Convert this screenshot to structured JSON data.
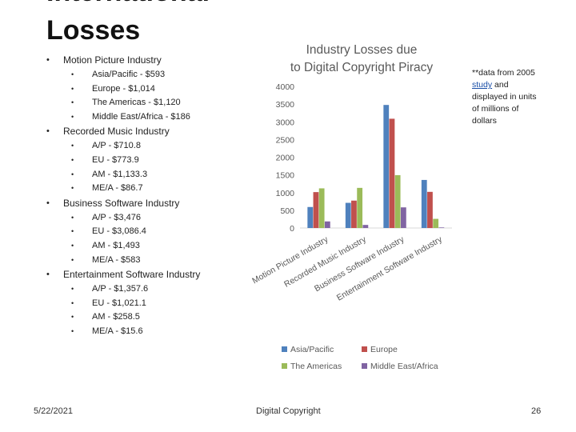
{
  "slide": {
    "title": "International\nLosses",
    "footer_date": "5/22/2021",
    "footer_center": "Digital Copyright",
    "page_number": "26"
  },
  "bullets": [
    {
      "label": "Motion Picture Industry",
      "items": [
        "Asia/Pacific - $593",
        "Europe - $1,014",
        "The Americas - $1,120",
        "Middle East/Africa - $186"
      ]
    },
    {
      "label": "Recorded Music Industry",
      "items": [
        "A/P - $710.8",
        "EU - $773.9",
        "AM - $1,133.3",
        "ME/A - $86.7"
      ]
    },
    {
      "label": "Business Software Industry",
      "items": [
        "A/P - $3,476",
        "EU - $3,086.4",
        "AM - $1,493",
        "ME/A - $583"
      ]
    },
    {
      "label": "Entertainment Software Industry",
      "items": [
        "A/P - $1,357.6",
        "EU - $1,021.1",
        "AM - $258.5",
        "ME/A - $15.6"
      ]
    }
  ],
  "note": {
    "prefix": "**data from 2005 ",
    "link_text": "study",
    "suffix": " and displayed in units of millions of dollars"
  },
  "chart_data": {
    "type": "bar",
    "title": "Industry Losses due to Digital Copyright Piracy",
    "categories": [
      "Motion Picture Industry",
      "Recorded Music Industry",
      "Business Software Industry",
      "Entertainment Software Industry"
    ],
    "series": [
      {
        "name": "Asia/Pacific",
        "color": "#4f81bd",
        "values": [
          593,
          710.8,
          3476,
          1357.6
        ]
      },
      {
        "name": "Europe",
        "color": "#c0504d",
        "values": [
          1014,
          773.9,
          3086.4,
          1021.1
        ]
      },
      {
        "name": "The Americas",
        "color": "#9bbb59",
        "values": [
          1120,
          1133.3,
          1493,
          258.5
        ]
      },
      {
        "name": "Middle East/Africa",
        "color": "#8064a2",
        "values": [
          186,
          86.7,
          583,
          15.6
        ]
      }
    ],
    "yticks": [
      0,
      500,
      1000,
      1500,
      2000,
      2500,
      3000,
      3500,
      4000
    ],
    "ylim": [
      0,
      4000
    ],
    "grid": false,
    "legend_position": "bottom",
    "axis_color": "#d9d9d9",
    "text_color": "#595959"
  }
}
